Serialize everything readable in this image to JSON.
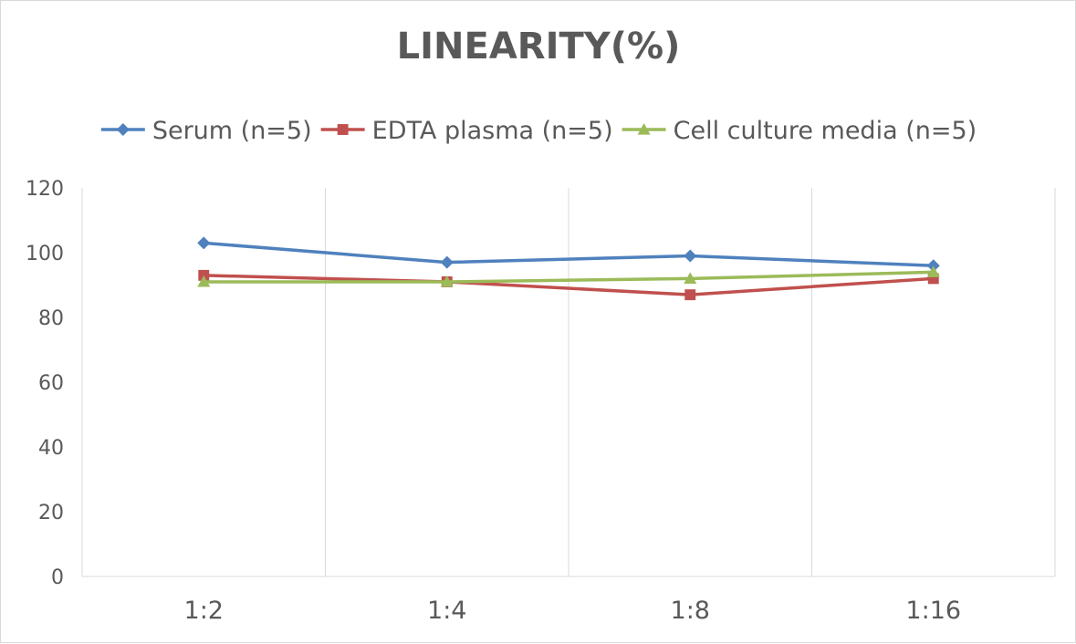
{
  "chart_data": {
    "type": "line",
    "title": "LINEARITY(%)",
    "xlabel": "",
    "ylabel": "",
    "categories": [
      "1:2",
      "1:4",
      "1:8",
      "1:16"
    ],
    "ylim": [
      0,
      120
    ],
    "yticks": [
      0,
      20,
      40,
      60,
      80,
      100,
      120
    ],
    "grid": "vertical",
    "legend_position": "top",
    "series": [
      {
        "name": "Serum (n=5)",
        "values": [
          103,
          97,
          99,
          96
        ],
        "color": "#4f81bd",
        "marker": "diamond"
      },
      {
        "name": "EDTA plasma (n=5)",
        "values": [
          93,
          91,
          87,
          92
        ],
        "color": "#c0504d",
        "marker": "square"
      },
      {
        "name": "Cell culture media (n=5)",
        "values": [
          91,
          91,
          92,
          94
        ],
        "color": "#9bbb59",
        "marker": "triangle"
      }
    ]
  }
}
